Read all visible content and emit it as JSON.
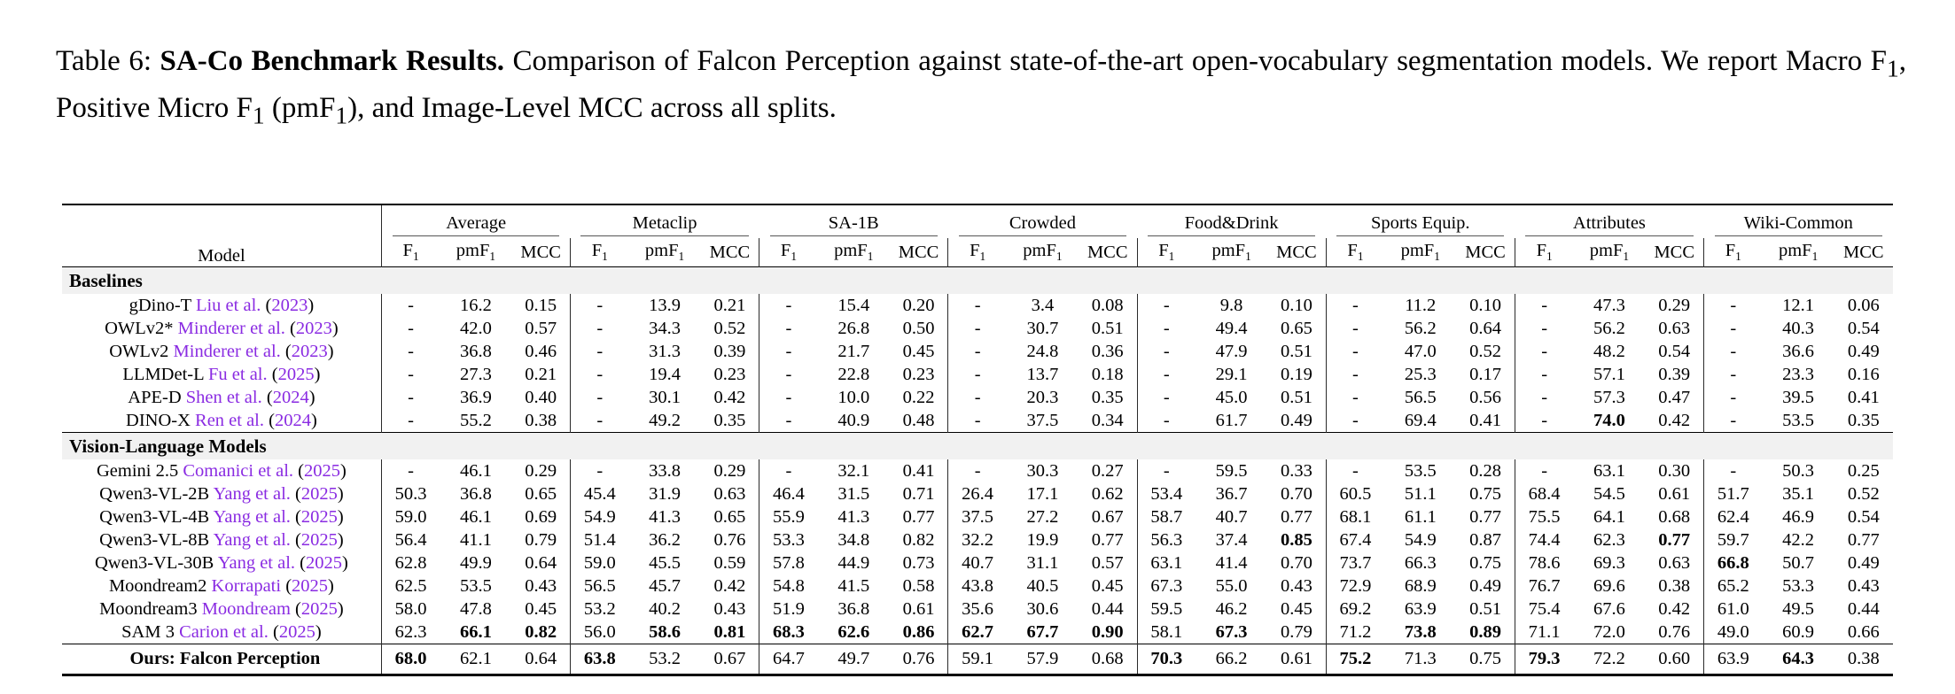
{
  "caption": {
    "label": "Table 6: ",
    "title": "SA-Co Benchmark Results.",
    "body": " Comparison of Falcon Perception against state-of-the-art open-vocabulary segmentation models. We report Macro F_1, Positive Micro F_1 (pmF_1), and Image-Level MCC across all splits."
  },
  "colors": {
    "citation": "#8A2BE2",
    "section_bg": "#f1f1f1"
  },
  "table": {
    "model_header": "Model",
    "groups": [
      "Average",
      "Metaclip",
      "SA-1B",
      "Crowded",
      "Food&Drink",
      "Sports Equip.",
      "Attributes",
      "Wiki-Common"
    ],
    "subcols": [
      "F_1",
      "pmF_1",
      "MCC"
    ],
    "sections": [
      {
        "title": "Baselines",
        "rows": [
          {
            "model": "gDino-T",
            "cite": "Liu et al.",
            "year": "2023",
            "values": [
              "-",
              "16.2",
              "0.15",
              "-",
              "13.9",
              "0.21",
              "-",
              "15.4",
              "0.20",
              "-",
              "3.4",
              "0.08",
              "-",
              "9.8",
              "0.10",
              "-",
              "11.2",
              "0.10",
              "-",
              "47.3",
              "0.29",
              "-",
              "12.1",
              "0.06"
            ]
          },
          {
            "model": "OWLv2*",
            "cite": "Minderer et al.",
            "year": "2023",
            "values": [
              "-",
              "42.0",
              "0.57",
              "-",
              "34.3",
              "0.52",
              "-",
              "26.8",
              "0.50",
              "-",
              "30.7",
              "0.51",
              "-",
              "49.4",
              "0.65",
              "-",
              "56.2",
              "0.64",
              "-",
              "56.2",
              "0.63",
              "-",
              "40.3",
              "0.54"
            ]
          },
          {
            "model": "OWLv2",
            "cite": "Minderer et al.",
            "year": "2023",
            "values": [
              "-",
              "36.8",
              "0.46",
              "-",
              "31.3",
              "0.39",
              "-",
              "21.7",
              "0.45",
              "-",
              "24.8",
              "0.36",
              "-",
              "47.9",
              "0.51",
              "-",
              "47.0",
              "0.52",
              "-",
              "48.2",
              "0.54",
              "-",
              "36.6",
              "0.49"
            ]
          },
          {
            "model": "LLMDet-L",
            "cite": "Fu et al.",
            "year": "2025",
            "values": [
              "-",
              "27.3",
              "0.21",
              "-",
              "19.4",
              "0.23",
              "-",
              "22.8",
              "0.23",
              "-",
              "13.7",
              "0.18",
              "-",
              "29.1",
              "0.19",
              "-",
              "25.3",
              "0.17",
              "-",
              "57.1",
              "0.39",
              "-",
              "23.3",
              "0.16"
            ]
          },
          {
            "model": "APE-D",
            "cite": "Shen et al.",
            "year": "2024",
            "values": [
              "-",
              "36.9",
              "0.40",
              "-",
              "30.1",
              "0.42",
              "-",
              "10.0",
              "0.22",
              "-",
              "20.3",
              "0.35",
              "-",
              "45.0",
              "0.51",
              "-",
              "56.5",
              "0.56",
              "-",
              "57.3",
              "0.47",
              "-",
              "39.5",
              "0.41"
            ]
          },
          {
            "model": "DINO-X",
            "cite": "Ren et al.",
            "year": "2024",
            "values": [
              "-",
              "55.2",
              "0.38",
              "-",
              "49.2",
              "0.35",
              "-",
              "40.9",
              "0.48",
              "-",
              "37.5",
              "0.34",
              "-",
              "61.7",
              "0.49",
              "-",
              "69.4",
              "0.41",
              "-",
              "*74.0*",
              "0.42",
              "-",
              "53.5",
              "0.35"
            ]
          }
        ]
      },
      {
        "title": "Vision-Language Models",
        "rows": [
          {
            "model": "Gemini 2.5",
            "cite": "Comanici et al.",
            "year": "2025",
            "values": [
              "-",
              "46.1",
              "0.29",
              "-",
              "33.8",
              "0.29",
              "-",
              "32.1",
              "0.41",
              "-",
              "30.3",
              "0.27",
              "-",
              "59.5",
              "0.33",
              "-",
              "53.5",
              "0.28",
              "-",
              "63.1",
              "0.30",
              "-",
              "50.3",
              "0.25"
            ]
          },
          {
            "model": "Qwen3-VL-2B",
            "cite": "Yang et al.",
            "year": "2025",
            "values": [
              "50.3",
              "36.8",
              "0.65",
              "45.4",
              "31.9",
              "0.63",
              "46.4",
              "31.5",
              "0.71",
              "26.4",
              "17.1",
              "0.62",
              "53.4",
              "36.7",
              "0.70",
              "60.5",
              "51.1",
              "0.75",
              "68.4",
              "54.5",
              "0.61",
              "51.7",
              "35.1",
              "0.52"
            ]
          },
          {
            "model": "Qwen3-VL-4B",
            "cite": "Yang et al.",
            "year": "2025",
            "values": [
              "59.0",
              "46.1",
              "0.69",
              "54.9",
              "41.3",
              "0.65",
              "55.9",
              "41.3",
              "0.77",
              "37.5",
              "27.2",
              "0.67",
              "58.7",
              "40.7",
              "0.77",
              "68.1",
              "61.1",
              "0.77",
              "75.5",
              "64.1",
              "0.68",
              "62.4",
              "46.9",
              "0.54"
            ]
          },
          {
            "model": "Qwen3-VL-8B",
            "cite": "Yang et al.",
            "year": "2025",
            "values": [
              "56.4",
              "41.1",
              "0.79",
              "51.4",
              "36.2",
              "0.76",
              "53.3",
              "34.8",
              "0.82",
              "32.2",
              "19.9",
              "0.77",
              "56.3",
              "37.4",
              "*0.85*",
              "67.4",
              "54.9",
              "0.87",
              "74.4",
              "62.3",
              "*0.77*",
              "59.7",
              "42.2",
              "0.77"
            ]
          },
          {
            "model": "Qwen3-VL-30B",
            "cite": "Yang et al.",
            "year": "2025",
            "values": [
              "62.8",
              "49.9",
              "0.64",
              "59.0",
              "45.5",
              "0.59",
              "57.8",
              "44.9",
              "0.73",
              "40.7",
              "31.1",
              "0.57",
              "63.1",
              "41.4",
              "0.70",
              "73.7",
              "66.3",
              "0.75",
              "78.6",
              "69.3",
              "0.63",
              "*66.8*",
              "50.7",
              "0.49"
            ]
          },
          {
            "model": "Moondream2",
            "cite": "Korrapati",
            "year": "2025",
            "values": [
              "62.5",
              "53.5",
              "0.43",
              "56.5",
              "45.7",
              "0.42",
              "54.8",
              "41.5",
              "0.58",
              "43.8",
              "40.5",
              "0.45",
              "67.3",
              "55.0",
              "0.43",
              "72.9",
              "68.9",
              "0.49",
              "76.7",
              "69.6",
              "0.38",
              "65.2",
              "53.3",
              "0.43"
            ]
          },
          {
            "model": "Moondream3",
            "cite": "Moondream",
            "year": "2025",
            "values": [
              "58.0",
              "47.8",
              "0.45",
              "53.2",
              "40.2",
              "0.43",
              "51.9",
              "36.8",
              "0.61",
              "35.6",
              "30.6",
              "0.44",
              "59.5",
              "46.2",
              "0.45",
              "69.2",
              "63.9",
              "0.51",
              "75.4",
              "67.6",
              "0.42",
              "61.0",
              "49.5",
              "0.44"
            ]
          },
          {
            "model": "SAM 3",
            "cite": "Carion et al.",
            "year": "2025",
            "values": [
              "62.3",
              "*66.1*",
              "*0.82*",
              "56.0",
              "*58.6*",
              "*0.81*",
              "*68.3*",
              "*62.6*",
              "*0.86*",
              "*62.7*",
              "*67.7*",
              "*0.90*",
              "58.1",
              "*67.3*",
              "0.79",
              "71.2",
              "*73.8*",
              "*0.89*",
              "71.1",
              "72.0",
              "0.76",
              "49.0",
              "60.9",
              "0.66"
            ]
          }
        ]
      }
    ],
    "ours": {
      "model": "Ours: Falcon Perception",
      "values": [
        "*68.0*",
        "62.1",
        "0.64",
        "*63.8*",
        "53.2",
        "0.67",
        "64.7",
        "49.7",
        "0.76",
        "59.1",
        "57.9",
        "0.68",
        "*70.3*",
        "66.2",
        "0.61",
        "*75.2*",
        "71.3",
        "0.75",
        "*79.3*",
        "72.2",
        "0.60",
        "63.9",
        "*64.3*",
        "0.38"
      ]
    }
  }
}
